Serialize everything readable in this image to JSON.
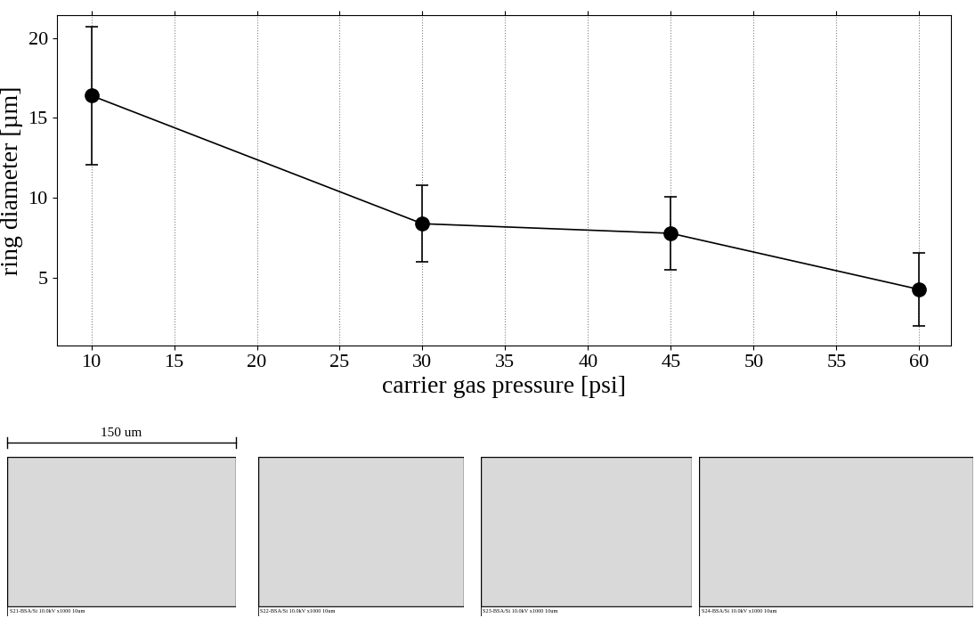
{
  "chart_data": {
    "type": "line",
    "x": [
      10,
      30,
      45,
      60
    ],
    "values": [
      16.4,
      8.4,
      7.8,
      4.3
    ],
    "errors": [
      4.3,
      2.4,
      2.3,
      2.3
    ],
    "x_label": "carrier gas pressure [psi]",
    "y_label": "ring diameter [µm]",
    "xlim": [
      7.9,
      61.9
    ],
    "xticks": [
      10,
      15,
      20,
      25,
      30,
      35,
      40,
      45,
      50,
      55,
      60
    ],
    "ylim": [
      0.8,
      21.4
    ],
    "yticks": [
      5,
      10,
      15,
      20
    ],
    "grid": "x",
    "color": "#000000",
    "marker": "circle",
    "line_style": "solid"
  },
  "images": {
    "scale_bar": "150 um",
    "captions": [
      "S21-BSA/Si 10.0kV x1000 10um",
      "S22-BSA/Si 10.0kV x1000 10um",
      "S23-BSA/Si 10.0kV x1000 10um",
      "S24-BSA/Si 10.0kV x1000 10um"
    ]
  }
}
